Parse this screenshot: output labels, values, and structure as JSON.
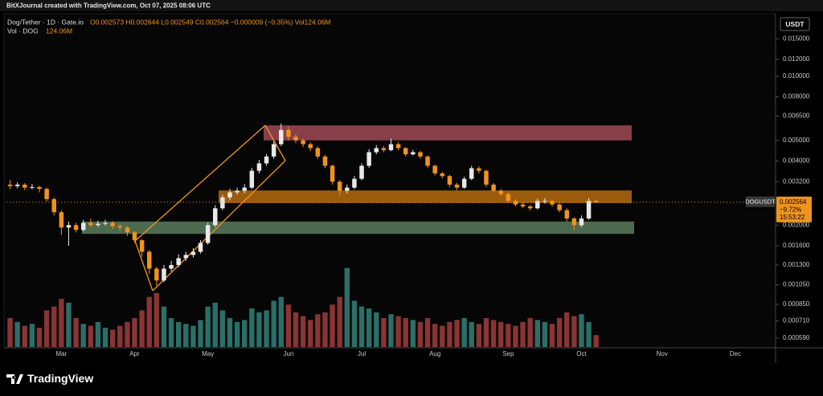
{
  "header": {
    "credit": "BitXJournal created with TradingView.com, Oct 07, 2025 08:06 UTC",
    "logo": "TradingView"
  },
  "chart_data": {
    "type": "candlestick",
    "symbol": "Dog/Tether · 1D · Gate.io",
    "ohlc_legend": "O0.002573 H0.002644 L0.002549 C0.002564 −0.000009 (−0.35%) Vol124.06M",
    "volume_legend": "Vol · DOG",
    "volume_value": "124.06M",
    "currency": "USDT",
    "ticker": "DOGUSDT",
    "last_price": 0.002564,
    "last_change": "−9.72%",
    "countdown": "15:53:22",
    "log_scale": true,
    "grid": false,
    "up_color": "#e8e8e8",
    "down_color": "#f0931e",
    "volume_up_color": "#2a6f68",
    "volume_down_color": "#8a3434",
    "ylim": [
      0.000536,
      0.0195
    ],
    "yticks": [
      {
        "value": 0.015,
        "label": "0.015000"
      },
      {
        "value": 0.012,
        "label": "0.012000"
      },
      {
        "value": 0.01,
        "label": "0.010000"
      },
      {
        "value": 0.008,
        "label": "0.008000"
      },
      {
        "value": 0.0065,
        "label": "0.006500"
      },
      {
        "value": 0.005,
        "label": "0.005000"
      },
      {
        "value": 0.004,
        "label": "0.004000"
      },
      {
        "value": 0.0032,
        "label": "0.003200"
      },
      {
        "value": 0.002,
        "label": "0.002000"
      },
      {
        "value": 0.0016,
        "label": "0.001600"
      },
      {
        "value": 0.0013,
        "label": "0.001300"
      },
      {
        "value": 0.00105,
        "label": "0.001050"
      },
      {
        "value": 0.00085,
        "label": "0.000850"
      },
      {
        "value": 0.00071,
        "label": "0.000710"
      },
      {
        "value": 0.00059,
        "label": "0.000590"
      }
    ],
    "zones": [
      {
        "top": 0.00588,
        "bottom": 0.005,
        "color": "#a04a56"
      },
      {
        "top": 0.00291,
        "bottom": 0.00254,
        "color": "#b56c0e"
      },
      {
        "top": 0.00208,
        "bottom": 0.00182,
        "color": "#5b7d5c"
      }
    ],
    "categories": [
      null,
      null,
      null,
      null,
      null,
      null,
      null,
      "Mar",
      null,
      null,
      null,
      null,
      null,
      null,
      null,
      null,
      null,
      "Apr",
      null,
      null,
      null,
      null,
      null,
      null,
      null,
      null,
      null,
      "May",
      null,
      null,
      null,
      null,
      null,
      null,
      null,
      null,
      null,
      null,
      "Jun",
      null,
      null,
      null,
      null,
      null,
      null,
      null,
      null,
      null,
      "Jul",
      null,
      null,
      null,
      null,
      null,
      null,
      null,
      null,
      null,
      "Aug",
      null,
      null,
      null,
      null,
      null,
      null,
      null,
      null,
      null,
      "Sep",
      null,
      null,
      null,
      null,
      null,
      null,
      null,
      null,
      null,
      "Oct",
      null,
      null,
      null,
      null,
      null,
      null,
      null,
      null,
      null,
      null,
      "Nov",
      null,
      null,
      null,
      null,
      null,
      null,
      null,
      null,
      null,
      "Dec",
      null,
      null,
      null,
      null,
      null
    ],
    "open": [
      0.0031,
      0.00305,
      0.0031,
      0.003,
      0.00302,
      0.00296,
      0.00265,
      0.0023,
      0.00195,
      0.002,
      0.0019,
      0.00205,
      0.002,
      0.00203,
      0.00205,
      0.00198,
      0.00195,
      0.00185,
      0.0017,
      0.0015,
      0.00125,
      0.0011,
      0.00125,
      0.0013,
      0.0014,
      0.00145,
      0.0015,
      0.00165,
      0.002,
      0.0024,
      0.0027,
      0.00285,
      0.0029,
      0.003,
      0.0036,
      0.0039,
      0.0042,
      0.0048,
      0.0056,
      0.0052,
      0.005,
      0.0048,
      0.0046,
      0.0042,
      0.0038,
      0.0032,
      0.0029,
      0.003,
      0.0033,
      0.0038,
      0.0044,
      0.0046,
      0.0045,
      0.0048,
      0.0046,
      0.0043,
      0.0044,
      0.0042,
      0.0038,
      0.0035,
      0.0034,
      0.0031,
      0.003,
      0.0033,
      0.0037,
      0.0036,
      0.0031,
      0.0029,
      0.0028,
      0.0026,
      0.0025,
      0.00245,
      0.0024,
      0.0026,
      0.0026,
      0.0025,
      0.00235,
      0.00215,
      0.002,
      0.00215,
      0.0026,
      null,
      null,
      null,
      null,
      null,
      null,
      null,
      null,
      null,
      null,
      null,
      null,
      null,
      null,
      null,
      null,
      null,
      null,
      null,
      null,
      null,
      null,
      null,
      null
    ],
    "high": [
      0.00325,
      0.00318,
      0.00315,
      0.00312,
      0.00306,
      0.003,
      0.0027,
      0.00235,
      0.00208,
      0.00205,
      0.00212,
      0.00215,
      0.0021,
      0.00212,
      0.00209,
      0.00202,
      0.00198,
      0.00188,
      0.00172,
      0.00153,
      0.00128,
      0.0013,
      0.00136,
      0.00146,
      0.0015,
      0.00156,
      0.0017,
      0.00206,
      0.00248,
      0.00278,
      0.00296,
      0.003,
      0.00312,
      0.00372,
      0.00405,
      0.00432,
      0.00495,
      0.006,
      0.0058,
      0.00535,
      0.0051,
      0.0049,
      0.00468,
      0.00428,
      0.00385,
      0.00326,
      0.0031,
      0.0034,
      0.0039,
      0.00455,
      0.00475,
      0.0047,
      0.0051,
      0.0049,
      0.00465,
      0.00452,
      0.00446,
      0.00425,
      0.00385,
      0.00356,
      0.00345,
      0.00316,
      0.00338,
      0.0038,
      0.00378,
      0.00364,
      0.00315,
      0.00296,
      0.00284,
      0.00265,
      0.00256,
      0.00249,
      0.00266,
      0.00268,
      0.00264,
      0.00254,
      0.0024,
      0.00218,
      0.00222,
      0.00268,
      0.002644,
      null,
      null,
      null,
      null,
      null,
      null,
      null,
      null,
      null,
      null,
      null,
      null,
      null,
      null,
      null,
      null,
      null,
      null,
      null,
      null,
      null,
      null,
      null,
      null
    ],
    "low": [
      0.00295,
      0.00298,
      0.00292,
      0.00295,
      0.00285,
      0.00258,
      0.00222,
      0.0018,
      0.0016,
      0.00185,
      0.00187,
      0.00195,
      0.00196,
      0.00199,
      0.00192,
      0.00188,
      0.00178,
      0.00165,
      0.00142,
      0.00118,
      0.00104,
      0.00108,
      0.00121,
      0.00127,
      0.00136,
      0.00141,
      0.00147,
      0.00162,
      0.00196,
      0.00235,
      0.00262,
      0.00278,
      0.00282,
      0.00295,
      0.0035,
      0.0038,
      0.0041,
      0.0047,
      0.005,
      0.00485,
      0.00465,
      0.00445,
      0.0041,
      0.0037,
      0.0031,
      0.00275,
      0.00282,
      0.00295,
      0.00325,
      0.00372,
      0.0043,
      0.0044,
      0.00445,
      0.0045,
      0.0042,
      0.00425,
      0.0041,
      0.00372,
      0.00342,
      0.00332,
      0.00302,
      0.00292,
      0.00296,
      0.00325,
      0.0035,
      0.00302,
      0.00284,
      0.00274,
      0.00254,
      0.00245,
      0.0024,
      0.00234,
      0.00237,
      0.00252,
      0.00244,
      0.0023,
      0.00208,
      0.0019,
      0.00196,
      0.00212,
      0.002549,
      null,
      null,
      null,
      null,
      null,
      null,
      null,
      null,
      null,
      null,
      null,
      null,
      null,
      null,
      null,
      null,
      null,
      null,
      null,
      null,
      null,
      null,
      null,
      null
    ],
    "close": [
      0.00305,
      0.0031,
      0.003,
      0.00302,
      0.00296,
      0.00265,
      0.0023,
      0.00195,
      0.002,
      0.0019,
      0.00205,
      0.002,
      0.00203,
      0.00205,
      0.00198,
      0.00195,
      0.00185,
      0.0017,
      0.0015,
      0.00125,
      0.0011,
      0.00125,
      0.0013,
      0.0014,
      0.00145,
      0.0015,
      0.00165,
      0.002,
      0.0024,
      0.0027,
      0.00285,
      0.0029,
      0.003,
      0.0036,
      0.0039,
      0.0042,
      0.0048,
      0.0056,
      0.0052,
      0.005,
      0.0048,
      0.0046,
      0.0042,
      0.0038,
      0.0032,
      0.0029,
      0.003,
      0.0033,
      0.0038,
      0.0044,
      0.0046,
      0.0045,
      0.0048,
      0.0046,
      0.0043,
      0.0044,
      0.0042,
      0.0038,
      0.0035,
      0.0034,
      0.0031,
      0.003,
      0.0033,
      0.0037,
      0.0036,
      0.0031,
      0.0029,
      0.0028,
      0.0026,
      0.0025,
      0.00245,
      0.0024,
      0.0026,
      0.0026,
      0.0025,
      0.00235,
      0.00215,
      0.002,
      0.00215,
      0.0026,
      0.002564,
      null,
      null,
      null,
      null,
      null,
      null,
      null,
      null,
      null,
      null,
      null,
      null,
      null,
      null,
      null,
      null,
      null,
      null,
      null,
      null,
      null,
      null,
      null,
      null
    ],
    "volume": [
      300,
      260,
      220,
      240,
      200,
      380,
      420,
      500,
      460,
      300,
      240,
      220,
      260,
      200,
      180,
      220,
      260,
      300,
      380,
      520,
      560,
      420,
      300,
      260,
      240,
      220,
      280,
      420,
      460,
      380,
      300,
      260,
      280,
      400,
      360,
      380,
      480,
      520,
      440,
      360,
      320,
      280,
      340,
      360,
      440,
      520,
      820,
      480,
      420,
      400,
      360,
      300,
      340,
      320,
      300,
      280,
      260,
      300,
      240,
      220,
      260,
      280,
      300,
      260,
      240,
      300,
      280,
      260,
      240,
      220,
      260,
      300,
      280,
      260,
      240,
      300,
      360,
      320,
      340,
      260,
      124.06,
      null,
      null,
      null,
      null,
      null,
      null,
      null,
      null,
      null,
      null,
      null,
      null,
      null,
      null,
      null,
      null,
      null,
      null,
      null,
      null,
      null,
      null,
      null,
      null
    ]
  }
}
